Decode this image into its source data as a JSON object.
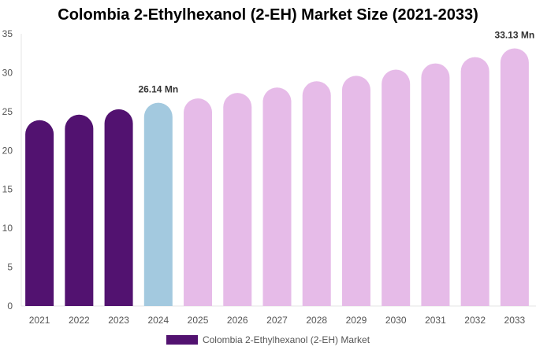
{
  "chart_data": {
    "type": "bar",
    "title": "Colombia 2-Ethylhexanol (2-EH) Market Size (2021-2033)",
    "xlabel": "",
    "ylabel": "",
    "categories": [
      "2021",
      "2022",
      "2023",
      "2024",
      "2025",
      "2026",
      "2027",
      "2028",
      "2029",
      "2030",
      "2031",
      "2032",
      "2033"
    ],
    "series": [
      {
        "name": "Colombia 2-Ethylhexanol (2-EH) Market",
        "values": [
          23.9,
          24.6,
          25.3,
          26.14,
          26.7,
          27.4,
          28.1,
          28.9,
          29.6,
          30.4,
          31.2,
          32.0,
          33.13
        ]
      }
    ],
    "ylim": [
      0,
      35
    ],
    "yticks": [
      0,
      5,
      10,
      15,
      20,
      25,
      30,
      35
    ],
    "data_labels": [
      {
        "category": "2024",
        "text": "26.14 Mn"
      },
      {
        "category": "2033",
        "text": "33.13 Mn"
      }
    ],
    "bar_colors": {
      "historical": "#521270",
      "base_year": "#a3c9df",
      "forecast": "#e6bbe8"
    },
    "color_periods": [
      "historical",
      "historical",
      "historical",
      "base_year",
      "forecast",
      "forecast",
      "forecast",
      "forecast",
      "forecast",
      "forecast",
      "forecast",
      "forecast",
      "forecast"
    ],
    "grid": false,
    "legend": {
      "position": "bottom",
      "color": "#521270"
    }
  }
}
